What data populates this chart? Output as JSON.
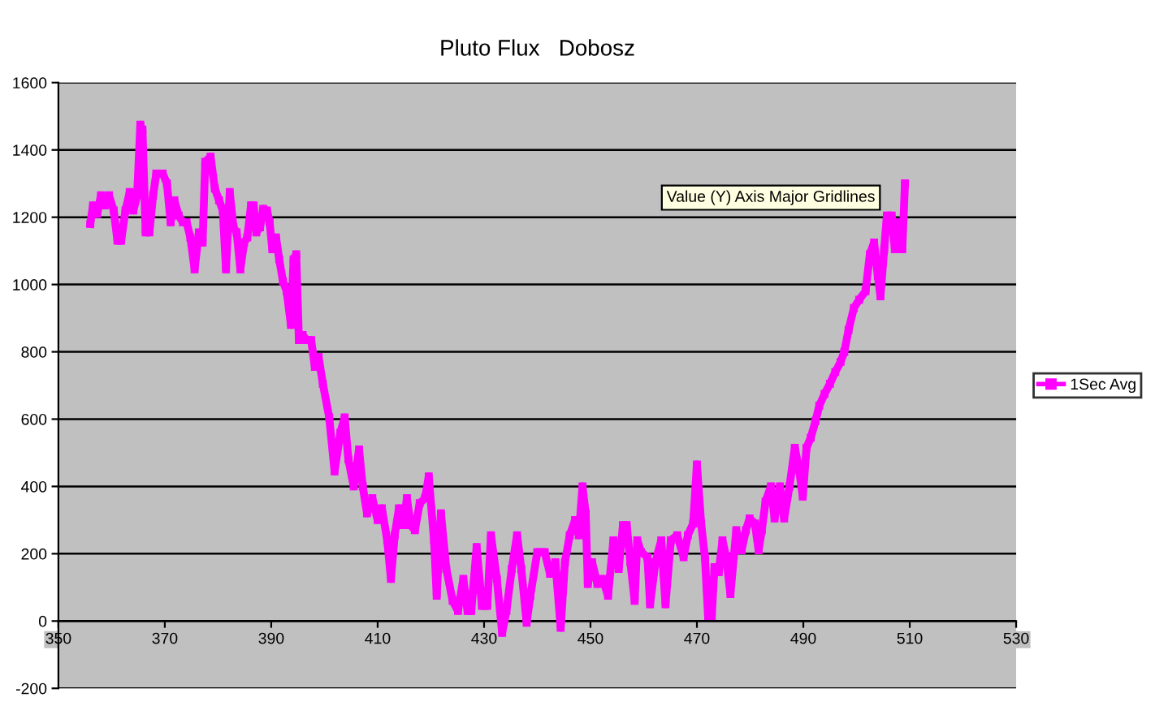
{
  "chart_data": {
    "type": "line",
    "title": "Pluto Flux   Dobosz",
    "series": [
      {
        "name": "1Sec Avg",
        "color": "#ff00ff",
        "x": [
          356.0,
          356.5,
          357.3,
          358.0,
          358.7,
          359.5,
          360.4,
          361.1,
          361.8,
          362.6,
          363.4,
          364.1,
          364.8,
          365.4,
          365.8,
          366.4,
          367.1,
          367.8,
          368.4,
          369.6,
          370.4,
          371.1,
          371.8,
          372.6,
          373.4,
          374.1,
          374.8,
          375.6,
          376.4,
          377.1,
          377.6,
          378.6,
          379.4,
          380.2,
          380.9,
          381.5,
          382.2,
          382.9,
          383.5,
          384.2,
          384.9,
          385.5,
          386.2,
          386.7,
          387.2,
          387.9,
          388.5,
          389.2,
          389.7,
          390.2,
          390.9,
          391.5,
          392.2,
          392.9,
          393.7,
          394.2,
          394.7,
          395.2,
          395.9,
          396.7,
          397.5,
          398.2,
          398.9,
          399.7,
          400.9,
          401.9,
          403.0,
          403.8,
          404.5,
          405.5,
          406.5,
          407.2,
          408.0,
          409.0,
          410.0,
          410.8,
          411.8,
          412.5,
          413.2,
          414.0,
          414.8,
          415.5,
          416.2,
          417.0,
          417.9,
          418.9,
          419.6,
          420.6,
          421.1,
          421.9,
          422.9,
          424.1,
          425.1,
          426.1,
          426.9,
          427.6,
          428.6,
          429.6,
          430.6,
          431.3,
          432.4,
          433.4,
          434.2,
          435.2,
          436.2,
          437.0,
          438.0,
          438.7,
          440.0,
          441.4,
          442.4,
          443.4,
          444.4,
          445.2,
          446.1,
          447.1,
          447.8,
          448.5,
          449.1,
          449.5,
          450.3,
          451.3,
          452.3,
          453.3,
          454.3,
          455.3,
          456.1,
          456.8,
          457.5,
          458.3,
          458.8,
          459.5,
          460.7,
          461.2,
          462.2,
          463.3,
          464.1,
          465.1,
          466.3,
          467.5,
          468.3,
          469.3,
          470.0,
          470.8,
          471.5,
          472.1,
          472.8,
          473.3,
          474.1,
          474.8,
          475.5,
          476.3,
          477.4,
          478.4,
          479.2,
          479.9,
          480.9,
          481.6,
          482.2,
          482.9,
          483.9,
          484.6,
          485.6,
          486.4,
          487.4,
          488.4,
          489.2,
          489.9,
          490.6,
          491.4,
          492.3,
          493.0,
          494.0,
          495.0,
          496.0,
          497.0,
          497.7,
          498.5,
          499.5,
          500.5,
          501.7,
          502.5,
          503.3,
          504.0,
          504.5,
          505.2,
          505.7,
          506.6,
          507.2,
          508.1,
          508.6,
          509.1
        ],
        "values": [
          1180,
          1235,
          1210,
          1265,
          1235,
          1265,
          1220,
          1130,
          1130,
          1220,
          1275,
          1220,
          1265,
          1475,
          1460,
          1155,
          1155,
          1265,
          1330,
          1330,
          1300,
          1185,
          1250,
          1205,
          1185,
          1185,
          1140,
          1045,
          1155,
          1125,
          1365,
          1380,
          1285,
          1250,
          1220,
          1045,
          1275,
          1170,
          1155,
          1045,
          1125,
          1140,
          1235,
          1235,
          1155,
          1170,
          1225,
          1220,
          1185,
          1105,
          1140,
          1075,
          1010,
          980,
          880,
          1075,
          1090,
          835,
          850,
          835,
          835,
          755,
          785,
          705,
          605,
          445,
          560,
          605,
          480,
          400,
          510,
          400,
          320,
          365,
          300,
          335,
          240,
          125,
          255,
          335,
          285,
          365,
          285,
          270,
          350,
          365,
          430,
          240,
          75,
          320,
          155,
          60,
          30,
          125,
          30,
          30,
          220,
          45,
          45,
          255,
          125,
          -35,
          30,
          155,
          255,
          155,
          -5,
          75,
          205,
          205,
          140,
          175,
          -20,
          175,
          255,
          300,
          255,
          400,
          320,
          110,
          175,
          110,
          125,
          75,
          240,
          155,
          285,
          285,
          175,
          60,
          240,
          205,
          190,
          50,
          175,
          240,
          50,
          240,
          255,
          190,
          255,
          290,
          465,
          290,
          190,
          15,
          15,
          160,
          145,
          240,
          190,
          80,
          270,
          210,
          270,
          305,
          290,
          210,
          270,
          355,
          400,
          305,
          400,
          305,
          400,
          515,
          450,
          370,
          515,
          545,
          595,
          640,
          675,
          705,
          740,
          770,
          800,
          865,
          930,
          955,
          980,
          1090,
          1125,
          1025,
          965,
          1105,
          1205,
          1205,
          1105,
          1185,
          1105,
          1300
        ]
      }
    ],
    "xlim": [
      350,
      530
    ],
    "xticks": [
      350,
      370,
      390,
      410,
      430,
      450,
      470,
      490,
      510,
      530
    ],
    "ylim": [
      -200,
      1600
    ],
    "yticks": [
      -200,
      0,
      200,
      400,
      600,
      800,
      1000,
      1200,
      1400,
      1600
    ],
    "grid": "y",
    "legend": "right",
    "marker": "square",
    "line_style": "solid",
    "annotations": [
      "Value (Y) Axis Major Gridlines"
    ]
  }
}
